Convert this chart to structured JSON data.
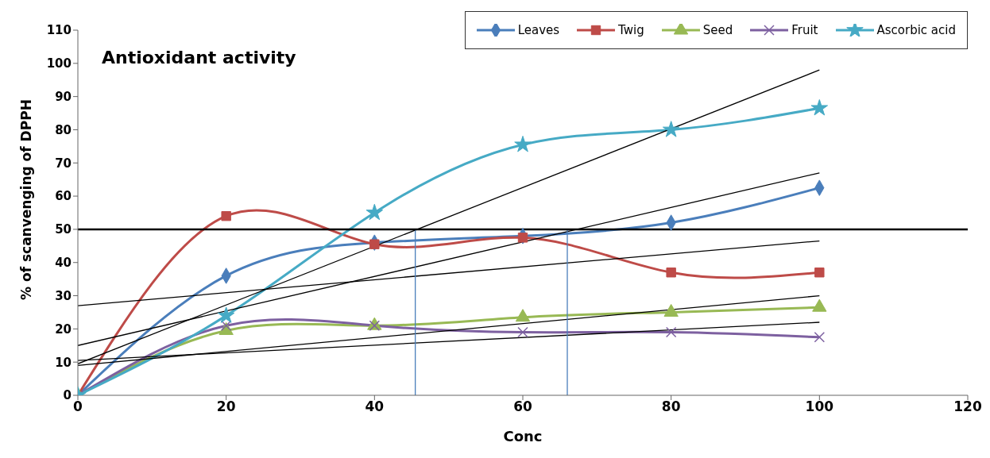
{
  "chart_data": {
    "type": "line",
    "title": "Antioxidant activity",
    "xlabel": "Conc",
    "ylabel": "% of scanvenging of DPPH",
    "x": [
      0,
      20,
      40,
      60,
      80,
      100
    ],
    "series": [
      {
        "name": "Leaves",
        "color": "#4a7ebb",
        "marker": "diamond",
        "values": [
          0,
          36,
          46,
          48,
          52,
          62.5
        ]
      },
      {
        "name": "Twig",
        "color": "#be4b48",
        "marker": "square",
        "values": [
          0,
          54,
          45.5,
          47.5,
          37,
          37
        ]
      },
      {
        "name": "Seed",
        "color": "#98b954",
        "marker": "triangle",
        "values": [
          0,
          19.5,
          21,
          23.5,
          25,
          26.5
        ]
      },
      {
        "name": "Fruit",
        "color": "#7d60a0",
        "marker": "cross",
        "values": [
          0,
          21,
          21,
          19,
          19,
          17.5
        ]
      },
      {
        "name": "Ascorbic acid",
        "color": "#46aac5",
        "marker": "star",
        "values": [
          0,
          24,
          55,
          75.5,
          80,
          86.5
        ]
      },
      {
        "color": "#000000",
        "marker": "none",
        "x": [
          0,
          100
        ],
        "values": [
          9.5,
          98
        ]
      },
      {
        "color": "#000000",
        "marker": "none",
        "x": [
          0,
          100
        ],
        "values": [
          15,
          67
        ]
      },
      {
        "color": "#000000",
        "marker": "none",
        "x": [
          0,
          100
        ],
        "values": [
          27,
          46.5
        ]
      },
      {
        "color": "#000000",
        "marker": "none",
        "x": [
          0,
          100
        ],
        "values": [
          9,
          30
        ]
      },
      {
        "color": "#000000",
        "marker": "none",
        "x": [
          0,
          100
        ],
        "values": [
          10.5,
          22
        ]
      },
      {
        "color": "#4a7ebb",
        "marker": "none",
        "x": [
          45.5,
          45.5
        ],
        "values": [
          0,
          50
        ]
      },
      {
        "color": "#4a7ebb",
        "marker": "none",
        "x": [
          66,
          66
        ],
        "values": [
          0,
          50
        ]
      }
    ],
    "ref_lines": [
      {
        "axis": "y",
        "value": 50,
        "color": "#000000"
      }
    ],
    "xlim": [
      0,
      120
    ],
    "xticks": [
      0,
      20,
      40,
      60,
      80,
      100,
      120
    ],
    "ylim": [
      0,
      110
    ],
    "yticks": [
      0,
      10,
      20,
      30,
      40,
      50,
      60,
      70,
      80,
      90,
      100,
      110
    ],
    "grid": false,
    "legend": "top right"
  }
}
